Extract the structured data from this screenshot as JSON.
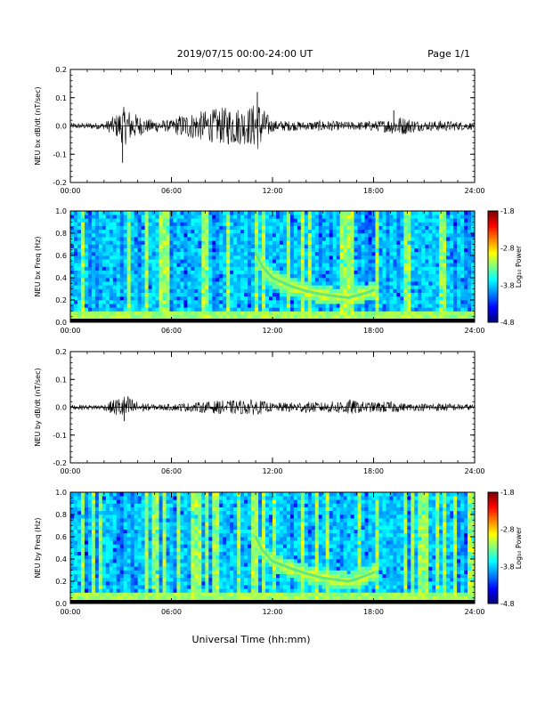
{
  "header": {
    "title": "2019/07/15  00:00-24:00 UT",
    "page": "Page 1/1"
  },
  "footer": {
    "xlabel": "Universal Time (hh:mm)"
  },
  "chart_data": [
    {
      "type": "line",
      "ylabel": "NEU bx dB/dt (nT/sec)",
      "xlim": [
        0,
        24
      ],
      "ylim": [
        -0.2,
        0.2
      ],
      "yticks": [
        "0.2",
        "0.1",
        "0.0",
        "-0.1",
        "-0.2"
      ],
      "xticks": [
        "00:00",
        "06:00",
        "12:00",
        "18:00",
        "24:00"
      ],
      "envelope": {
        "hours": [
          0,
          2,
          2.7,
          3.2,
          3.7,
          4.5,
          6,
          6.5,
          7.5,
          8.5,
          9.5,
          10.5,
          11.2,
          11.6,
          12,
          13,
          14,
          15,
          16,
          17,
          18.5,
          19.5,
          21,
          22,
          24
        ],
        "amplitude": [
          0.01,
          0.012,
          0.04,
          0.07,
          0.05,
          0.025,
          0.02,
          0.04,
          0.05,
          0.06,
          0.07,
          0.065,
          0.09,
          0.05,
          0.02,
          0.018,
          0.015,
          0.02,
          0.016,
          0.015,
          0.02,
          0.035,
          0.015,
          0.02,
          0.012
        ]
      },
      "peaks": [
        {
          "hour": 3.1,
          "value": -0.13
        },
        {
          "hour": 11.1,
          "value": 0.12
        },
        {
          "hour": 19.2,
          "value": 0.055
        }
      ]
    },
    {
      "type": "heatmap",
      "ylabel": "NEU bx Freq (Hz)",
      "xlim": [
        0,
        24
      ],
      "ylim": [
        0,
        1.0
      ],
      "yticks": [
        "1.0",
        "0.8",
        "0.6",
        "0.4",
        "0.2",
        "0.0"
      ],
      "xticks": [
        "00:00",
        "06:00",
        "12:00",
        "18:00",
        "24:00"
      ],
      "colorbar": {
        "label": "Log₁₀ Power",
        "ticks": [
          "-1.8",
          "-2.8",
          "-3.8",
          "-4.8"
        ],
        "range": [
          -4.8,
          -1.8
        ]
      },
      "features": [
        {
          "name": "emission-arc",
          "hours": [
            11.0,
            11.4,
            12.0,
            13.0,
            14.0,
            15.0,
            16.0,
            16.5,
            17.0,
            17.5,
            18.0
          ],
          "freq": [
            0.62,
            0.5,
            0.4,
            0.33,
            0.28,
            0.25,
            0.23,
            0.22,
            0.24,
            0.26,
            0.29
          ]
        }
      ]
    },
    {
      "type": "line",
      "ylabel": "NEU by dB/dt (nT/sec)",
      "xlim": [
        0,
        24
      ],
      "ylim": [
        -0.2,
        0.2
      ],
      "yticks": [
        "0.2",
        "0.1",
        "0.0",
        "-0.1",
        "-0.2"
      ],
      "xticks": [
        "00:00",
        "06:00",
        "12:00",
        "18:00",
        "24:00"
      ],
      "envelope": {
        "hours": [
          0,
          2,
          2.8,
          3.3,
          4.0,
          5,
          6,
          8,
          9,
          10,
          11,
          12,
          13,
          14,
          15,
          16,
          16.5,
          17,
          18,
          19,
          20,
          22,
          24
        ],
        "amplitude": [
          0.008,
          0.01,
          0.035,
          0.045,
          0.02,
          0.01,
          0.012,
          0.02,
          0.025,
          0.025,
          0.028,
          0.015,
          0.018,
          0.02,
          0.018,
          0.025,
          0.03,
          0.022,
          0.018,
          0.022,
          0.012,
          0.015,
          0.01
        ]
      },
      "peaks": [
        {
          "hour": 3.2,
          "value": -0.05
        }
      ]
    },
    {
      "type": "heatmap",
      "ylabel": "NEU by Freq (Hz)",
      "xlim": [
        0,
        24
      ],
      "ylim": [
        0,
        1.0
      ],
      "yticks": [
        "1.0",
        "0.8",
        "0.6",
        "0.4",
        "0.2",
        "0.0"
      ],
      "xticks": [
        "00:00",
        "06:00",
        "12:00",
        "18:00",
        "24:00"
      ],
      "colorbar": {
        "label": "Log₁₀ Power",
        "ticks": [
          "-1.8",
          "-2.8",
          "-3.8",
          "-4.8"
        ],
        "range": [
          -4.8,
          -1.8
        ]
      },
      "features": [
        {
          "name": "emission-arc",
          "hours": [
            11.0,
            11.4,
            12.0,
            13.0,
            14.0,
            15.0,
            16.0,
            16.5,
            17.0,
            17.5,
            18.0
          ],
          "freq": [
            0.6,
            0.48,
            0.38,
            0.32,
            0.27,
            0.23,
            0.21,
            0.2,
            0.22,
            0.25,
            0.28
          ]
        }
      ]
    }
  ]
}
